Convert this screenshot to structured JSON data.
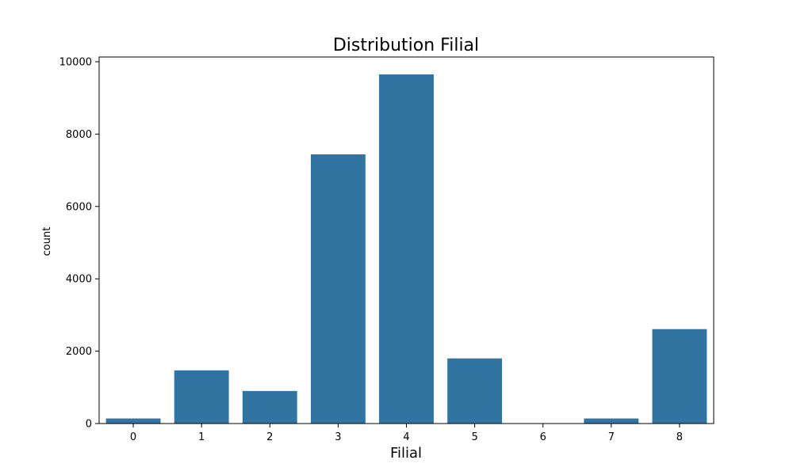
{
  "chart_data": {
    "type": "bar",
    "title": "Distribution Filial",
    "xlabel": "Filial",
    "ylabel": "count",
    "categories": [
      "0",
      "1",
      "2",
      "3",
      "4",
      "5",
      "6",
      "7",
      "8"
    ],
    "values": [
      140,
      1470,
      900,
      7440,
      9650,
      1800,
      10,
      140,
      2610
    ],
    "ylim": [
      0,
      10000
    ],
    "yticks": [
      0,
      2000,
      4000,
      6000,
      8000,
      10000
    ],
    "bar_color": "#3274a1",
    "grid": false,
    "legend": "none"
  }
}
